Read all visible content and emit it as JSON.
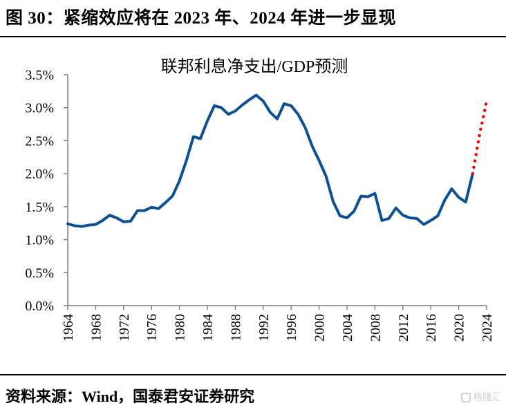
{
  "figure": {
    "title": "图 30：紧缩效应将在 2023 年、2024 年进一步显现",
    "source": "资料来源：Wind，国泰君安证券研究",
    "watermark": "格隆汇"
  },
  "colors": {
    "actual_line": "#0b4f94",
    "forecast_dots": "#ff0000",
    "axis": "#7f7f7f"
  },
  "chart_data": {
    "type": "line",
    "title": "联邦利息净支出/GDP预测",
    "xlabel": "",
    "ylabel": "",
    "ylim": [
      0,
      3.5
    ],
    "xlim": [
      1964,
      2024
    ],
    "grid": false,
    "legend": "none",
    "y_ticks": [
      "0.0%",
      "0.5%",
      "1.0%",
      "1.5%",
      "2.0%",
      "2.5%",
      "3.0%",
      "3.5%"
    ],
    "y_tick_values": [
      0,
      0.5,
      1.0,
      1.5,
      2.0,
      2.5,
      3.0,
      3.5
    ],
    "x_ticks": [
      "1964",
      "1968",
      "1972",
      "1976",
      "1980",
      "1984",
      "1988",
      "1992",
      "1996",
      "2000",
      "2004",
      "2008",
      "2012",
      "2016",
      "2020",
      "2024"
    ],
    "series": [
      {
        "name": "联邦利息净支出/GDP",
        "style": "solid",
        "x": [
          1964,
          1965,
          1966,
          1967,
          1968,
          1969,
          1970,
          1971,
          1972,
          1973,
          1974,
          1975,
          1976,
          1977,
          1978,
          1979,
          1980,
          1981,
          1982,
          1983,
          1984,
          1985,
          1986,
          1987,
          1988,
          1989,
          1990,
          1991,
          1992,
          1993,
          1994,
          1995,
          1996,
          1997,
          1998,
          1999,
          2000,
          2001,
          2002,
          2003,
          2004,
          2005,
          2006,
          2007,
          2008,
          2009,
          2010,
          2011,
          2012,
          2013,
          2014,
          2015,
          2016,
          2017,
          2018,
          2019,
          2020,
          2021,
          2022
        ],
        "values": [
          1.24,
          1.21,
          1.2,
          1.22,
          1.23,
          1.29,
          1.37,
          1.33,
          1.27,
          1.28,
          1.44,
          1.44,
          1.49,
          1.47,
          1.56,
          1.66,
          1.89,
          2.2,
          2.56,
          2.53,
          2.8,
          3.03,
          3.0,
          2.9,
          2.95,
          3.04,
          3.12,
          3.19,
          3.1,
          2.93,
          2.83,
          3.06,
          3.03,
          2.9,
          2.7,
          2.42,
          2.2,
          1.96,
          1.58,
          1.36,
          1.33,
          1.43,
          1.66,
          1.65,
          1.7,
          1.29,
          1.32,
          1.48,
          1.37,
          1.33,
          1.32,
          1.23,
          1.29,
          1.36,
          1.6,
          1.77,
          1.64,
          1.57,
          2.0
        ]
      },
      {
        "name": "预测",
        "style": "dotted",
        "x": [
          2022,
          2023,
          2024
        ],
        "values": [
          2.0,
          2.6,
          3.1
        ]
      }
    ]
  }
}
